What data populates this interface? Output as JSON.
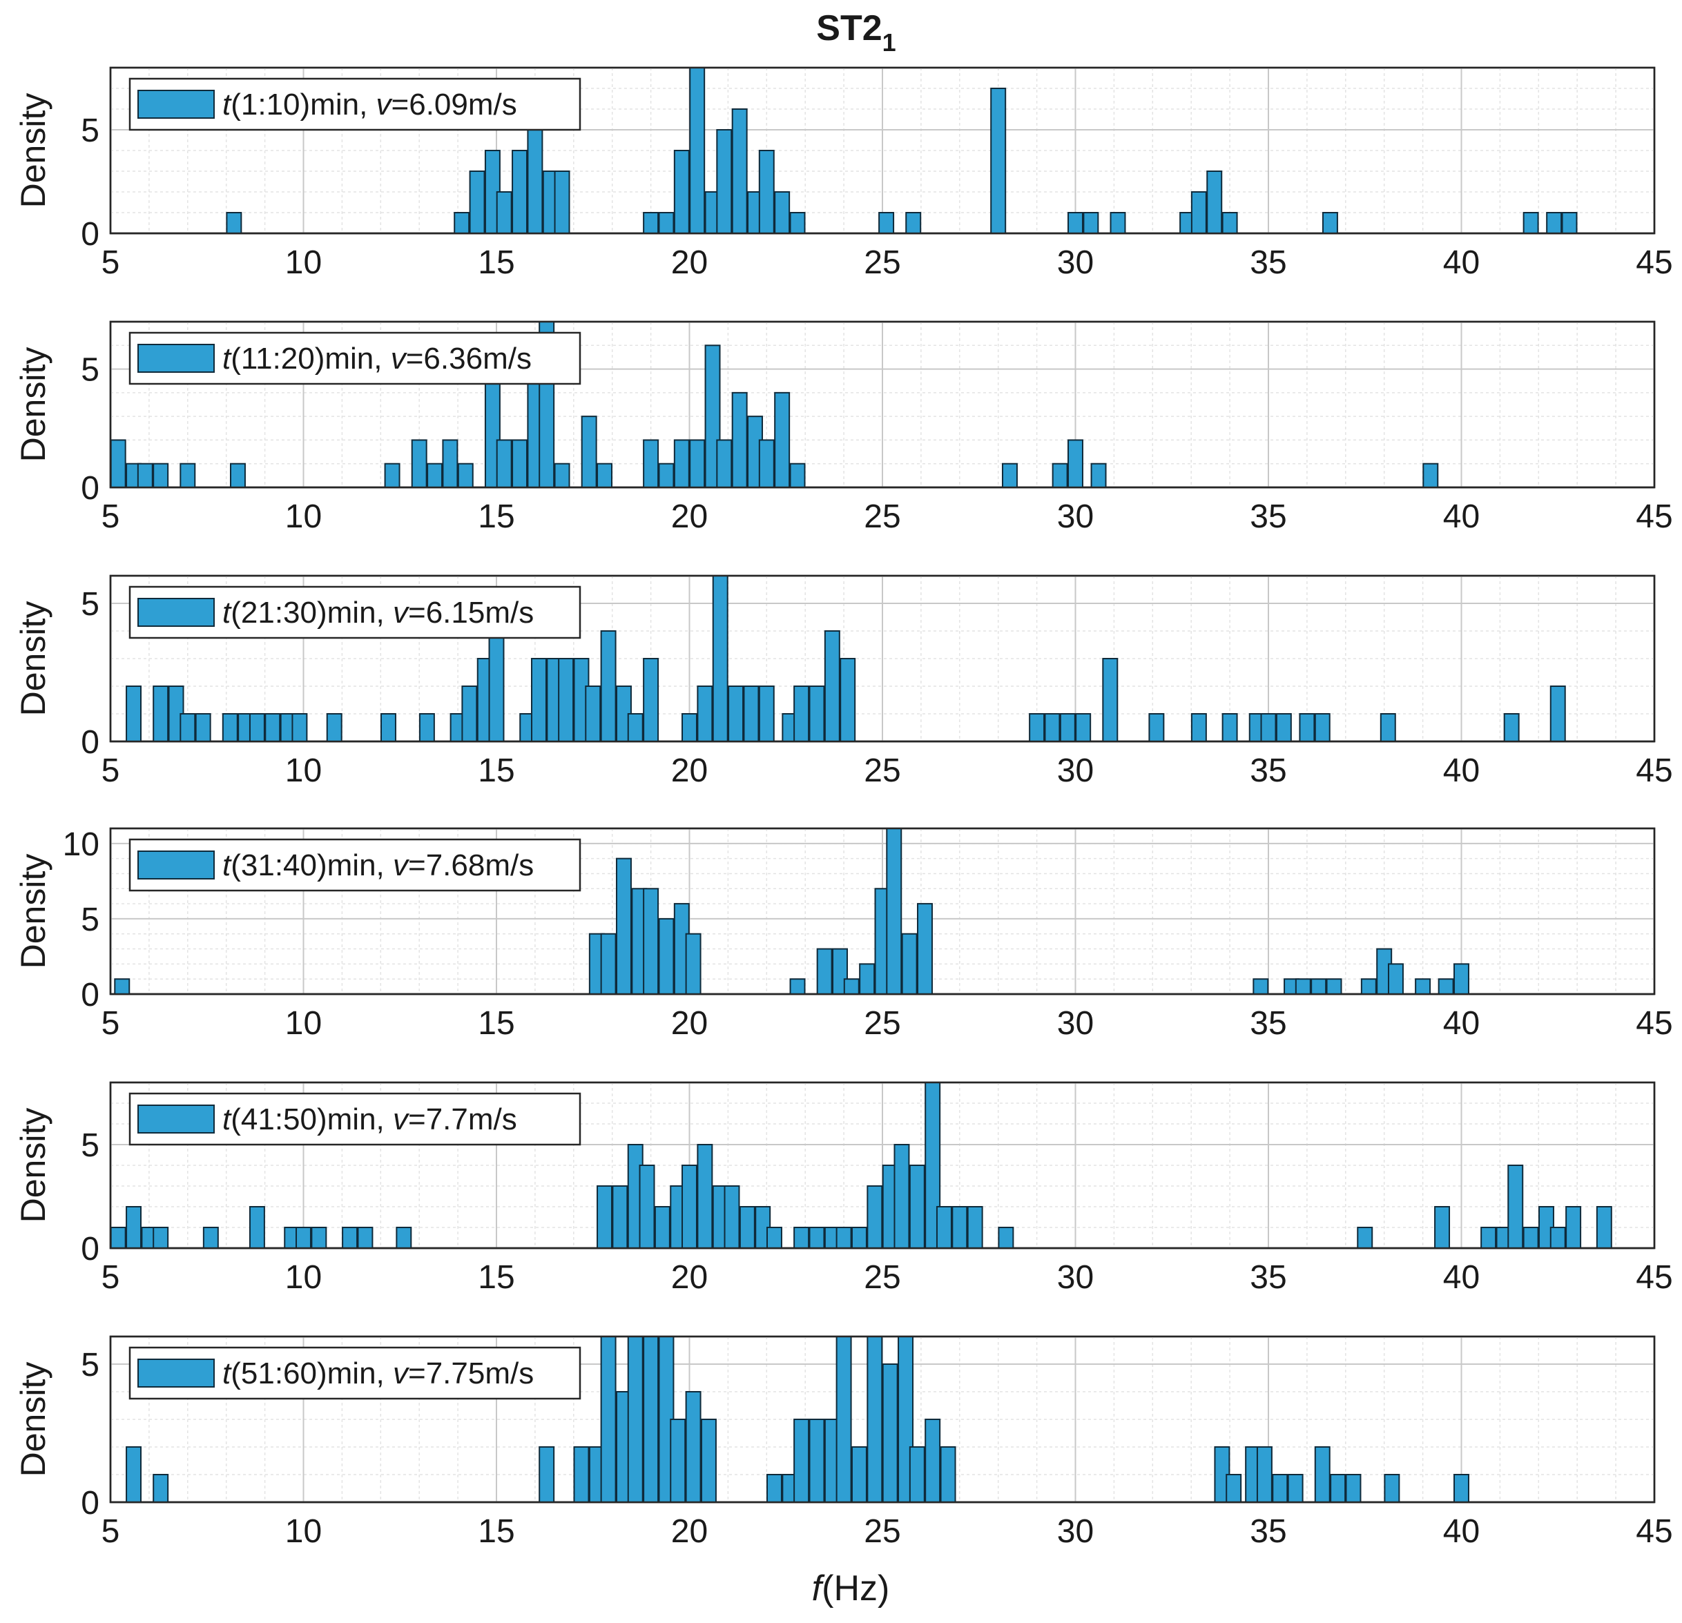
{
  "chart_data": {
    "type": "histogram",
    "title": "ST2",
    "title_subscript": "1",
    "xlabel_italic": "f",
    "xlabel_rest": "(Hz)",
    "ylabel": "Density",
    "xlim": [
      5,
      45
    ],
    "xticks": [
      5,
      10,
      15,
      20,
      25,
      30,
      35,
      40,
      45
    ],
    "bin_width": 0.375,
    "colors": {
      "bar": "#2f9fd3",
      "edge": "#0f2a3a",
      "grid": "#c8c8c8"
    },
    "panels": [
      {
        "legend": {
          "t_prefix": "t",
          "t_rest": "(1:10)min, ",
          "v_prefix": "v",
          "v_rest": "=6.09m/s"
        },
        "ylim": [
          0,
          8
        ],
        "yticks": [
          0,
          5
        ],
        "bars": [
          [
            8.2,
            1
          ],
          [
            14.1,
            1
          ],
          [
            14.5,
            3
          ],
          [
            14.9,
            4
          ],
          [
            15.2,
            2
          ],
          [
            15.6,
            4
          ],
          [
            16.0,
            5
          ],
          [
            16.4,
            3
          ],
          [
            16.7,
            3
          ],
          [
            19.0,
            1
          ],
          [
            19.4,
            1
          ],
          [
            19.8,
            4
          ],
          [
            20.2,
            8
          ],
          [
            20.6,
            2
          ],
          [
            20.9,
            5
          ],
          [
            21.3,
            6
          ],
          [
            21.7,
            2
          ],
          [
            22.0,
            4
          ],
          [
            22.4,
            2
          ],
          [
            22.8,
            1
          ],
          [
            25.1,
            1
          ],
          [
            25.8,
            1
          ],
          [
            28.0,
            7
          ],
          [
            30.0,
            1
          ],
          [
            30.4,
            1
          ],
          [
            31.1,
            1
          ],
          [
            32.9,
            1
          ],
          [
            33.2,
            2
          ],
          [
            33.6,
            3
          ],
          [
            34.0,
            1
          ],
          [
            36.6,
            1
          ],
          [
            41.8,
            1
          ],
          [
            42.4,
            1
          ],
          [
            42.8,
            1
          ]
        ]
      },
      {
        "legend": {
          "t_prefix": "t",
          "t_rest": "(11:20)min, ",
          "v_prefix": "v",
          "v_rest": "=6.36m/s"
        },
        "ylim": [
          0,
          7
        ],
        "yticks": [
          0,
          5
        ],
        "bars": [
          [
            5.2,
            2
          ],
          [
            5.6,
            1
          ],
          [
            5.9,
            1
          ],
          [
            6.3,
            1
          ],
          [
            7.0,
            1
          ],
          [
            8.3,
            1
          ],
          [
            12.3,
            1
          ],
          [
            13.0,
            2
          ],
          [
            13.4,
            1
          ],
          [
            13.8,
            2
          ],
          [
            14.2,
            1
          ],
          [
            14.9,
            5
          ],
          [
            15.2,
            2
          ],
          [
            15.6,
            2
          ],
          [
            16.0,
            5
          ],
          [
            16.3,
            7
          ],
          [
            16.7,
            1
          ],
          [
            17.4,
            3
          ],
          [
            17.8,
            1
          ],
          [
            19.0,
            2
          ],
          [
            19.4,
            1
          ],
          [
            19.8,
            2
          ],
          [
            20.2,
            2
          ],
          [
            20.6,
            6
          ],
          [
            20.9,
            2
          ],
          [
            21.3,
            4
          ],
          [
            21.7,
            3
          ],
          [
            22.0,
            2
          ],
          [
            22.4,
            4
          ],
          [
            22.8,
            1
          ],
          [
            28.3,
            1
          ],
          [
            29.6,
            1
          ],
          [
            30.0,
            2
          ],
          [
            30.6,
            1
          ],
          [
            39.2,
            1
          ]
        ]
      },
      {
        "legend": {
          "t_prefix": "t",
          "t_rest": "(21:30)min, ",
          "v_prefix": "v",
          "v_rest": "=6.15m/s"
        },
        "ylim": [
          0,
          6
        ],
        "yticks": [
          0,
          5
        ],
        "bars": [
          [
            5.6,
            2
          ],
          [
            6.3,
            2
          ],
          [
            6.7,
            2
          ],
          [
            7.0,
            1
          ],
          [
            7.4,
            1
          ],
          [
            8.1,
            1
          ],
          [
            8.5,
            1
          ],
          [
            8.8,
            1
          ],
          [
            9.2,
            1
          ],
          [
            9.6,
            1
          ],
          [
            9.9,
            1
          ],
          [
            10.8,
            1
          ],
          [
            12.2,
            1
          ],
          [
            13.2,
            1
          ],
          [
            14.0,
            1
          ],
          [
            14.3,
            2
          ],
          [
            14.7,
            3
          ],
          [
            15.0,
            4
          ],
          [
            15.8,
            1
          ],
          [
            16.1,
            3
          ],
          [
            16.5,
            3
          ],
          [
            16.8,
            3
          ],
          [
            17.2,
            3
          ],
          [
            17.5,
            2
          ],
          [
            17.9,
            4
          ],
          [
            18.3,
            2
          ],
          [
            18.6,
            1
          ],
          [
            19.0,
            3
          ],
          [
            20.0,
            1
          ],
          [
            20.4,
            2
          ],
          [
            20.8,
            6
          ],
          [
            21.2,
            2
          ],
          [
            21.6,
            2
          ],
          [
            22.0,
            2
          ],
          [
            22.6,
            1
          ],
          [
            22.9,
            2
          ],
          [
            23.3,
            2
          ],
          [
            23.7,
            4
          ],
          [
            24.1,
            3
          ],
          [
            29.0,
            1
          ],
          [
            29.4,
            1
          ],
          [
            29.8,
            1
          ],
          [
            30.2,
            1
          ],
          [
            30.9,
            3
          ],
          [
            32.1,
            1
          ],
          [
            33.2,
            1
          ],
          [
            34.0,
            1
          ],
          [
            34.7,
            1
          ],
          [
            35.0,
            1
          ],
          [
            35.4,
            1
          ],
          [
            36.0,
            1
          ],
          [
            36.4,
            1
          ],
          [
            38.1,
            1
          ],
          [
            41.3,
            1
          ],
          [
            42.5,
            2
          ]
        ]
      },
      {
        "legend": {
          "t_prefix": "t",
          "t_rest": "(31:40)min, ",
          "v_prefix": "v",
          "v_rest": "=7.68m/s"
        },
        "ylim": [
          0,
          11
        ],
        "yticks": [
          0,
          5,
          10
        ],
        "bars": [
          [
            5.3,
            1
          ],
          [
            17.6,
            4
          ],
          [
            17.9,
            4
          ],
          [
            18.3,
            9
          ],
          [
            18.7,
            7
          ],
          [
            19.0,
            7
          ],
          [
            19.4,
            5
          ],
          [
            19.8,
            6
          ],
          [
            20.1,
            4
          ],
          [
            22.8,
            1
          ],
          [
            23.5,
            3
          ],
          [
            23.9,
            3
          ],
          [
            24.2,
            1
          ],
          [
            24.6,
            2
          ],
          [
            25.0,
            7
          ],
          [
            25.3,
            11
          ],
          [
            25.7,
            4
          ],
          [
            26.1,
            6
          ],
          [
            34.8,
            1
          ],
          [
            35.6,
            1
          ],
          [
            35.9,
            1
          ],
          [
            36.3,
            1
          ],
          [
            36.7,
            1
          ],
          [
            37.6,
            1
          ],
          [
            38.0,
            3
          ],
          [
            38.3,
            2
          ],
          [
            39.0,
            1
          ],
          [
            39.6,
            1
          ],
          [
            40.0,
            2
          ]
        ]
      },
      {
        "legend": {
          "t_prefix": "t",
          "t_rest": "(41:50)min, ",
          "v_prefix": "v",
          "v_rest": "=7.7m/s"
        },
        "ylim": [
          0,
          8
        ],
        "yticks": [
          0,
          5
        ],
        "bars": [
          [
            5.2,
            1
          ],
          [
            5.6,
            2
          ],
          [
            6.0,
            1
          ],
          [
            6.3,
            1
          ],
          [
            7.6,
            1
          ],
          [
            8.8,
            2
          ],
          [
            9.7,
            1
          ],
          [
            10.0,
            1
          ],
          [
            10.4,
            1
          ],
          [
            11.2,
            1
          ],
          [
            11.6,
            1
          ],
          [
            12.6,
            1
          ],
          [
            17.8,
            3
          ],
          [
            18.2,
            3
          ],
          [
            18.6,
            5
          ],
          [
            18.9,
            4
          ],
          [
            19.3,
            2
          ],
          [
            19.7,
            3
          ],
          [
            20.0,
            4
          ],
          [
            20.4,
            5
          ],
          [
            20.8,
            3
          ],
          [
            21.1,
            3
          ],
          [
            21.5,
            2
          ],
          [
            21.9,
            2
          ],
          [
            22.2,
            1
          ],
          [
            22.9,
            1
          ],
          [
            23.3,
            1
          ],
          [
            23.7,
            1
          ],
          [
            24.0,
            1
          ],
          [
            24.4,
            1
          ],
          [
            24.8,
            3
          ],
          [
            25.2,
            4
          ],
          [
            25.5,
            5
          ],
          [
            25.9,
            4
          ],
          [
            26.3,
            8
          ],
          [
            26.6,
            2
          ],
          [
            27.0,
            2
          ],
          [
            27.4,
            2
          ],
          [
            28.2,
            1
          ],
          [
            37.5,
            1
          ],
          [
            39.5,
            2
          ],
          [
            40.7,
            1
          ],
          [
            41.1,
            1
          ],
          [
            41.4,
            4
          ],
          [
            41.8,
            1
          ],
          [
            42.2,
            2
          ],
          [
            42.5,
            1
          ],
          [
            42.9,
            2
          ],
          [
            43.7,
            2
          ]
        ]
      },
      {
        "legend": {
          "t_prefix": "t",
          "t_rest": "(51:60)min, ",
          "v_prefix": "v",
          "v_rest": "=7.75m/s"
        },
        "ylim": [
          0,
          6
        ],
        "yticks": [
          0,
          5
        ],
        "bars": [
          [
            5.6,
            2
          ],
          [
            6.3,
            1
          ],
          [
            16.3,
            2
          ],
          [
            17.2,
            2
          ],
          [
            17.6,
            2
          ],
          [
            17.9,
            6
          ],
          [
            18.3,
            4
          ],
          [
            18.6,
            6
          ],
          [
            19.0,
            6
          ],
          [
            19.4,
            6
          ],
          [
            19.7,
            3
          ],
          [
            20.1,
            4
          ],
          [
            20.5,
            3
          ],
          [
            22.2,
            1
          ],
          [
            22.6,
            1
          ],
          [
            22.9,
            3
          ],
          [
            23.3,
            3
          ],
          [
            23.7,
            3
          ],
          [
            24.0,
            6
          ],
          [
            24.4,
            2
          ],
          [
            24.8,
            6
          ],
          [
            25.2,
            5
          ],
          [
            25.6,
            6
          ],
          [
            25.9,
            2
          ],
          [
            26.3,
            3
          ],
          [
            26.7,
            2
          ],
          [
            33.8,
            2
          ],
          [
            34.1,
            1
          ],
          [
            34.6,
            2
          ],
          [
            34.9,
            2
          ],
          [
            35.3,
            1
          ],
          [
            35.7,
            1
          ],
          [
            36.4,
            2
          ],
          [
            36.8,
            1
          ],
          [
            37.2,
            1
          ],
          [
            38.2,
            1
          ],
          [
            40.0,
            1
          ]
        ]
      }
    ]
  }
}
